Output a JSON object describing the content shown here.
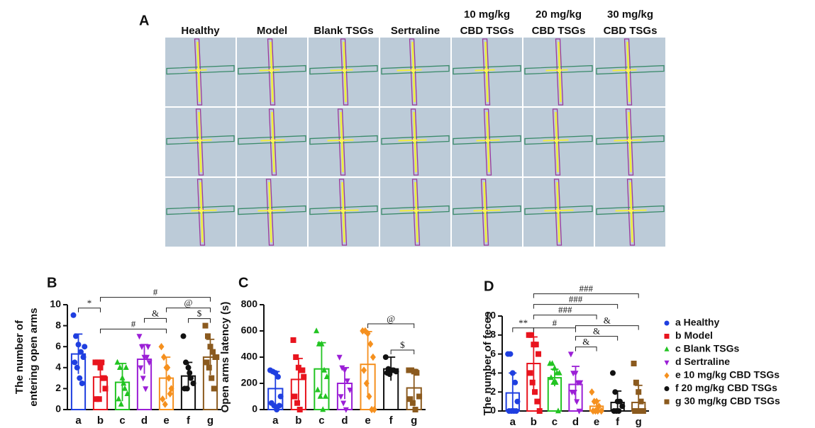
{
  "panel_a": {
    "label": "A",
    "columns": [
      [
        "Healthy"
      ],
      [
        "Model"
      ],
      [
        "Blank TSGs"
      ],
      [
        "Sertraline"
      ],
      [
        "10 mg/kg",
        "CBD TSGs"
      ],
      [
        "20 mg/kg",
        "CBD TSGs"
      ],
      [
        "30 mg/kg",
        "CBD TSGs"
      ]
    ]
  },
  "chart_data": [
    {
      "type": "bar",
      "panel": "B",
      "ylabel": [
        "The number of",
        "entering open arms"
      ],
      "categories": [
        "a",
        "b",
        "c",
        "d",
        "e",
        "f",
        "g"
      ],
      "values": [
        5.3,
        3.1,
        2.6,
        4.8,
        3.0,
        3.2,
        5.0
      ],
      "errors": [
        1.9,
        1.5,
        1.8,
        1.4,
        2.0,
        1.3,
        1.7
      ],
      "points": [
        [
          9,
          7,
          6.2,
          5.5,
          5,
          4.5,
          4,
          3,
          2.5,
          6
        ],
        [
          4.5,
          4.5,
          4,
          3,
          2,
          1,
          1,
          4.5,
          3
        ],
        [
          4.5,
          4,
          3,
          2,
          1.5,
          1,
          0.5,
          2.5,
          4
        ],
        [
          7,
          6,
          5,
          5,
          4.5,
          4,
          3,
          2,
          6
        ],
        [
          6,
          5,
          4,
          3,
          2,
          1,
          0.5,
          4,
          1.5
        ],
        [
          7,
          4.5,
          4,
          3,
          2.5,
          2,
          2,
          3.5
        ],
        [
          8,
          7,
          6,
          5.5,
          5,
          4.5,
          4,
          3,
          2,
          5
        ]
      ],
      "colors": [
        "#1f3fe0",
        "#e8141e",
        "#22c422",
        "#9b1fd6",
        "#f5901e",
        "#111111",
        "#8b5a1e"
      ],
      "markers": [
        "circle",
        "square",
        "triangle",
        "triangle-down",
        "diamond",
        "circle",
        "square"
      ],
      "ylim": [
        0,
        10
      ],
      "yticks": [
        0,
        2,
        4,
        6,
        8,
        10
      ],
      "annotations": [
        {
          "text": "*",
          "from": 0,
          "to": 1
        },
        {
          "text": "$",
          "from": 5,
          "to": 6
        },
        {
          "text": "#",
          "from": 1,
          "to": 4
        },
        {
          "text": "&",
          "from": 3,
          "to": 4
        },
        {
          "text": "@",
          "from": 4,
          "to": 6
        },
        {
          "text": "#",
          "from": 1,
          "to": 6
        }
      ]
    },
    {
      "type": "bar",
      "panel": "C",
      "ylabel": [
        "Open arms latency (s)"
      ],
      "categories": [
        "a",
        "b",
        "c",
        "d",
        "e",
        "f",
        "g"
      ],
      "values": [
        160,
        230,
        310,
        200,
        345,
        310,
        165
      ],
      "errors": [
        130,
        160,
        200,
        120,
        250,
        90,
        140
      ],
      "points": [
        [
          300,
          290,
          280,
          250,
          100,
          50,
          30,
          0,
          30
        ],
        [
          530,
          400,
          320,
          300,
          250,
          100,
          50,
          0,
          300
        ],
        [
          600,
          500,
          500,
          300,
          250,
          150,
          100,
          0,
          100
        ],
        [
          400,
          320,
          300,
          220,
          150,
          100,
          50,
          0
        ],
        [
          600,
          600,
          580,
          500,
          400,
          300,
          200,
          100,
          0,
          0
        ],
        [
          400,
          310,
          300,
          300,
          290,
          280,
          270,
          300
        ],
        [
          300,
          300,
          290,
          280,
          100,
          80,
          50,
          0
        ]
      ],
      "colors": [
        "#1f3fe0",
        "#e8141e",
        "#22c422",
        "#9b1fd6",
        "#f5901e",
        "#111111",
        "#8b5a1e"
      ],
      "markers": [
        "circle",
        "square",
        "triangle",
        "triangle-down",
        "diamond",
        "circle",
        "square"
      ],
      "ylim": [
        0,
        800
      ],
      "yticks": [
        0,
        200,
        400,
        600,
        800
      ],
      "annotations": [
        {
          "text": "$",
          "from": 5,
          "to": 6
        },
        {
          "text": "@",
          "from": 4,
          "to": 6
        }
      ]
    },
    {
      "type": "bar",
      "panel": "D",
      "ylabel": [
        "The number of feces"
      ],
      "categories": [
        "a",
        "b",
        "c",
        "d",
        "e",
        "f",
        "g"
      ],
      "values": [
        1.9,
        5.0,
        3.5,
        2.8,
        0.5,
        0.9,
        0.9
      ],
      "errors": [
        2.1,
        2.8,
        0.9,
        1.9,
        0.6,
        1.2,
        1.8
      ],
      "points": [
        [
          6,
          6,
          4,
          3,
          1,
          0,
          0,
          0,
          0
        ],
        [
          8,
          8,
          7,
          7,
          6,
          4,
          3,
          2,
          1,
          0
        ],
        [
          5,
          5,
          4.5,
          4,
          4,
          3.5,
          3,
          3,
          0
        ],
        [
          6,
          4,
          4,
          3,
          3,
          2,
          2,
          1,
          0
        ],
        [
          2,
          1,
          1,
          0.5,
          0,
          0,
          0,
          0
        ],
        [
          4,
          2,
          1,
          1,
          0.5,
          0,
          0,
          0
        ],
        [
          5,
          3,
          2,
          1,
          0,
          0,
          0,
          0
        ]
      ],
      "colors": [
        "#1f3fe0",
        "#e8141e",
        "#22c422",
        "#9b1fd6",
        "#f5901e",
        "#111111",
        "#8b5a1e"
      ],
      "markers": [
        "circle",
        "square",
        "triangle",
        "triangle-down",
        "diamond",
        "circle",
        "square"
      ],
      "ylim": [
        0,
        10
      ],
      "yticks": [
        0,
        2,
        4,
        6,
        8,
        10
      ],
      "annotations": [
        {
          "text": "**",
          "from": 0,
          "to": 1
        },
        {
          "text": "&",
          "from": 3,
          "to": 4
        },
        {
          "text": "&",
          "from": 3,
          "to": 5
        },
        {
          "text": "&",
          "from": 3,
          "to": 6
        },
        {
          "text": "#",
          "from": 1,
          "to": 3
        },
        {
          "text": "###",
          "from": 1,
          "to": 4
        },
        {
          "text": "###",
          "from": 1,
          "to": 5
        },
        {
          "text": "###",
          "from": 1,
          "to": 6
        }
      ],
      "legend": [
        "a Healthy",
        "b Model",
        "c Blank TSGs",
        "d Sertraline",
        "e 10 mg/kg CBD TSGs",
        "f 20 mg/kg CBD TSGs",
        "g 30 mg/kg CBD TSGs"
      ]
    }
  ]
}
